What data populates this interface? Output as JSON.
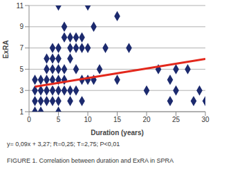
{
  "chart_data": {
    "type": "scatter",
    "x_label": "Duration (years)",
    "y_label": "ExRA",
    "annotations": [
      "y= 0,09x + 3,27; R=0,25; T=2,75; P<0,01"
    ],
    "caption": "FIGURE 1. Correlation between duration and ExRA in SPRA",
    "xlim": [
      0,
      30
    ],
    "xticks": [
      0,
      5,
      10,
      15,
      20,
      25,
      30
    ],
    "ylim": [
      1,
      11
    ],
    "yticks": [
      1,
      3,
      5,
      7,
      9,
      11
    ],
    "grid": true,
    "series": [
      {
        "type": "scatter",
        "color": "#1c2a6e",
        "marker": "diamond",
        "x": [
          1,
          1,
          1,
          1,
          2,
          2,
          2,
          2,
          3,
          3,
          3,
          3,
          3,
          4,
          4,
          4,
          4,
          4,
          4,
          5,
          5,
          5,
          5,
          5,
          5,
          5,
          5,
          6,
          6,
          6,
          6,
          6,
          7,
          7,
          7,
          7,
          7,
          8,
          8,
          8,
          8,
          9,
          9,
          9,
          9,
          10,
          10,
          10,
          11,
          11,
          12,
          13,
          15,
          15,
          17,
          20,
          22,
          24,
          24,
          25,
          25,
          27,
          28,
          29,
          30
        ],
        "values": [
          1,
          2,
          3,
          4,
          1,
          2,
          3,
          4,
          2,
          3,
          4,
          5,
          6,
          2,
          3,
          4,
          5,
          6,
          7,
          1,
          2,
          3,
          4,
          5,
          6,
          7,
          11,
          3,
          4,
          5,
          8,
          9,
          2,
          3,
          6,
          7,
          8,
          3,
          5,
          7,
          8,
          2,
          4,
          7,
          8,
          4,
          7,
          11,
          4,
          9,
          5,
          7,
          4,
          10,
          7,
          3,
          5,
          2,
          4,
          3,
          5,
          5,
          2,
          3,
          2
        ]
      },
      {
        "type": "line",
        "color": "#e3281c",
        "line_style": "solid",
        "x": [
          1,
          30
        ],
        "values": [
          3.36,
          5.97
        ]
      }
    ]
  }
}
